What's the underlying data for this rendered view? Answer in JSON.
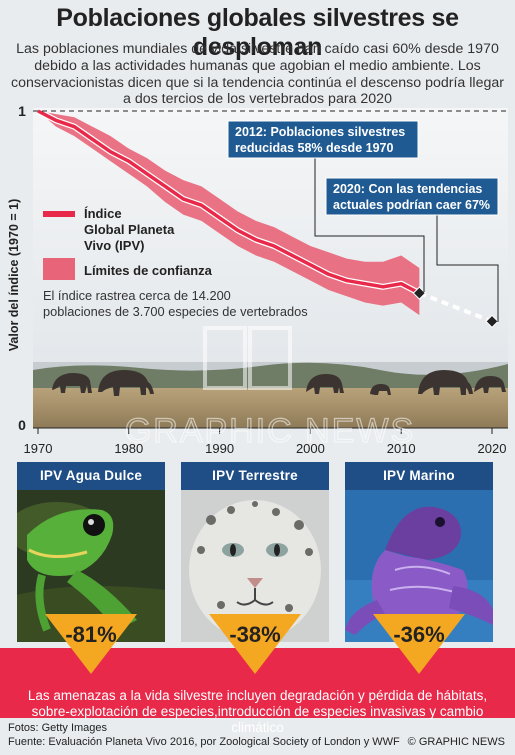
{
  "header": {
    "title": "Poblaciones globales silvestres se desploman",
    "subtitle": "Las poblaciones mundiales de vida silvestre han caído casi 60% desde 1970 debido a las actividades humanas que agobian el medio ambiente. Los conservacionistas dicen que si la tendencia continúa el descenso podría llegar a dos tercios de los vertebrados para 2020"
  },
  "chart_data": {
    "type": "line",
    "ylabel": "Valor del índice (1970 = 1)",
    "xlim": [
      1970,
      2021
    ],
    "ylim": [
      0,
      1
    ],
    "x_ticks": [
      1970,
      1980,
      1990,
      2000,
      2010,
      2020
    ],
    "y_ticks": [
      {
        "value": 0,
        "label": "0"
      },
      {
        "value": 1,
        "label": "1"
      }
    ],
    "series": [
      {
        "name": "Índice Global Planeta Vivo (IPV)",
        "x": [
          1970,
          1972,
          1974,
          1976,
          1978,
          1980,
          1982,
          1984,
          1986,
          1988,
          1990,
          1992,
          1994,
          1996,
          1998,
          2000,
          2002,
          2004,
          2006,
          2008,
          2010,
          2012
        ],
        "y": [
          1.0,
          0.97,
          0.95,
          0.91,
          0.87,
          0.84,
          0.8,
          0.76,
          0.72,
          0.7,
          0.66,
          0.62,
          0.59,
          0.57,
          0.54,
          0.51,
          0.48,
          0.46,
          0.45,
          0.44,
          0.45,
          0.42
        ],
        "lower": [
          1.0,
          0.95,
          0.92,
          0.88,
          0.84,
          0.8,
          0.76,
          0.71,
          0.67,
          0.65,
          0.61,
          0.57,
          0.54,
          0.52,
          0.49,
          0.46,
          0.43,
          0.41,
          0.39,
          0.38,
          0.39,
          0.35
        ],
        "upper": [
          1.0,
          0.99,
          0.98,
          0.95,
          0.92,
          0.88,
          0.85,
          0.81,
          0.78,
          0.76,
          0.72,
          0.68,
          0.65,
          0.63,
          0.6,
          0.57,
          0.55,
          0.53,
          0.52,
          0.52,
          0.54,
          0.5
        ]
      },
      {
        "name": "projection",
        "x": [
          2012,
          2020
        ],
        "y": [
          0.42,
          0.33
        ]
      }
    ],
    "legend": [
      {
        "label": "Índice Global Planeta Vivo (IPV)",
        "color": "#e8294a"
      },
      {
        "label": "Límites de confianza",
        "color": "#e86478"
      }
    ],
    "legend_position": "left-middle",
    "annotations": [
      {
        "text": "2012: Poblaciones silvestres reducidas 58% desde 1970",
        "x": 2012,
        "y": 0.42
      },
      {
        "text": "2020: Con las tendencias actuales podrían caer 67%",
        "x": 2020,
        "y": 0.33
      },
      {
        "text": "El índice rastrea cerca de 14.200 poblaciones de 3.700 especies de vertebrados"
      }
    ]
  },
  "cards": [
    {
      "title": "IPV Agua Dulce",
      "value": "-81%"
    },
    {
      "title": "IPV Terrestre",
      "value": "-38%"
    },
    {
      "title": "IPV Marino",
      "value": "-36%"
    }
  ],
  "threats": "Las amenazas a la vida silvestre incluyen degradación y pérdida de hábitats, sobre-explotación de especies,introducción de especies invasivas y cambio climático",
  "footer": {
    "photos": "Fotos: Getty Images",
    "source": "Fuente: Evaluación Planeta Vivo 2016, por Zoological Society of London y WWF",
    "brand": "© GRAPHIC NEWS"
  },
  "colors": {
    "accent_red": "#e8294a",
    "band_red": "#e86478",
    "callout_blue": "#1f5a92",
    "card_blue": "#1f4d86",
    "arrow_orange": "#f4a720"
  }
}
